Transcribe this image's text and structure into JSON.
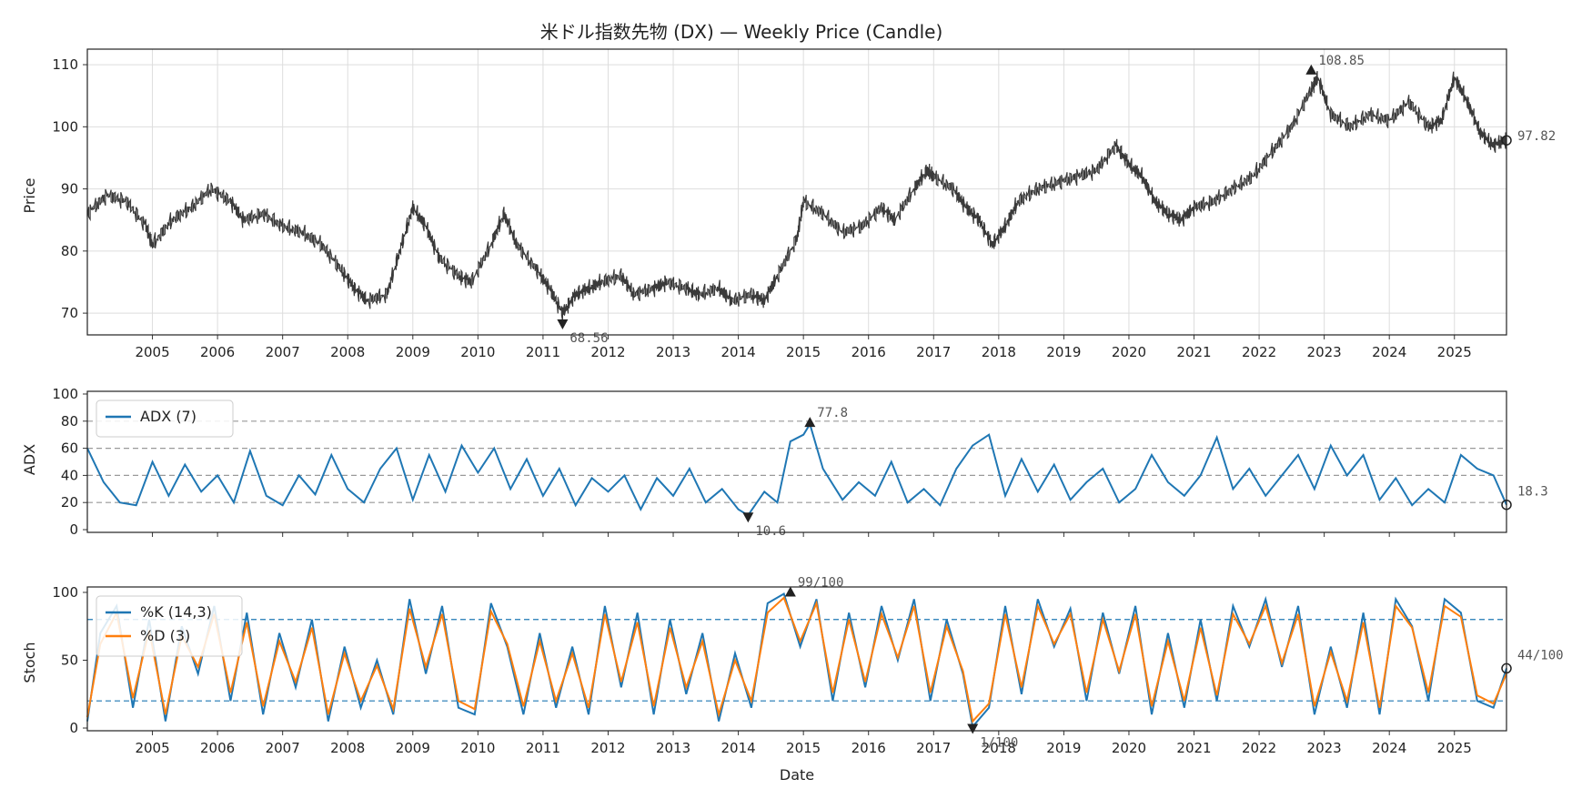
{
  "chart_data": [
    {
      "type": "candlestick",
      "title": "米ドル指数先物 (DX) — Weekly Price (Candle)",
      "ylabel": "Price",
      "xlabel": "",
      "xlim": [
        2004.0,
        2025.8
      ],
      "ylim": [
        66.5,
        112.5
      ],
      "yticks": [
        70,
        80,
        90,
        100,
        110
      ],
      "x_tick_labels": [
        "2005",
        "2006",
        "2007",
        "2008",
        "2009",
        "2010",
        "2011",
        "2012",
        "2013",
        "2014",
        "2015",
        "2016",
        "2017",
        "2018",
        "2019",
        "2020",
        "2021",
        "2022",
        "2023",
        "2024",
        "2025"
      ],
      "color": "#3a3a3a",
      "grid": true,
      "series_approx": {
        "x": [
          2004.0,
          2004.3,
          2004.6,
          2004.9,
          2005.0,
          2005.3,
          2005.6,
          2005.9,
          2006.2,
          2006.4,
          2006.7,
          2007.0,
          2007.3,
          2007.6,
          2007.9,
          2008.1,
          2008.3,
          2008.6,
          2008.8,
          2009.0,
          2009.2,
          2009.4,
          2009.7,
          2009.9,
          2010.2,
          2010.4,
          2010.6,
          2010.9,
          2011.1,
          2011.3,
          2011.5,
          2011.7,
          2011.9,
          2012.2,
          2012.4,
          2012.7,
          2012.9,
          2013.2,
          2013.4,
          2013.7,
          2013.9,
          2014.2,
          2014.4,
          2014.6,
          2014.9,
          2015.0,
          2015.3,
          2015.6,
          2015.9,
          2016.2,
          2016.4,
          2016.7,
          2016.9,
          2017.0,
          2017.3,
          2017.5,
          2017.7,
          2017.9,
          2018.1,
          2018.3,
          2018.6,
          2018.9,
          2019.2,
          2019.5,
          2019.8,
          2020.0,
          2020.2,
          2020.4,
          2020.6,
          2020.8,
          2021.0,
          2021.3,
          2021.6,
          2021.9,
          2022.2,
          2022.5,
          2022.8,
          2022.9,
          2023.1,
          2023.4,
          2023.7,
          2024.0,
          2024.3,
          2024.6,
          2024.8,
          2025.0,
          2025.2,
          2025.4,
          2025.6,
          2025.8
        ],
        "values": [
          86,
          89,
          88,
          84,
          81,
          85,
          87,
          90,
          88,
          85,
          86,
          84,
          83,
          81,
          77,
          74,
          72,
          73,
          80,
          87,
          84,
          79,
          76,
          75,
          81,
          86,
          81,
          77,
          74,
          70,
          73,
          74,
          75,
          76,
          73,
          74,
          75,
          74,
          73,
          74,
          72,
          73,
          72,
          76,
          82,
          88,
          86,
          83,
          84,
          87,
          85,
          90,
          93,
          92,
          90,
          87,
          85,
          81,
          84,
          88,
          90,
          91,
          92,
          93,
          97,
          94,
          92,
          88,
          86,
          85,
          87,
          88,
          90,
          92,
          96,
          100,
          106,
          108,
          102,
          100,
          102,
          101,
          104,
          100,
          101,
          108,
          104,
          99,
          97,
          98
        ]
      },
      "annotations": [
        {
          "label": "108.85",
          "x": 2022.8,
          "y": 108.85,
          "marker": "max"
        },
        {
          "label": "68.56",
          "x": 2011.3,
          "y": 68.56,
          "marker": "min"
        },
        {
          "label": "97.82",
          "x": 2025.8,
          "y": 97.82,
          "marker": "last"
        }
      ]
    },
    {
      "type": "line",
      "ylabel": "ADX",
      "xlim": [
        2004.0,
        2025.8
      ],
      "ylim": [
        -2,
        102
      ],
      "yticks": [
        0,
        20,
        40,
        60,
        80,
        100
      ],
      "hlines": [
        20,
        40,
        60,
        80
      ],
      "legend": [
        "ADX (7)"
      ],
      "series": [
        {
          "name": "ADX (7)",
          "color": "#1f77b4",
          "x": [
            2004.0,
            2004.25,
            2004.5,
            2004.75,
            2005.0,
            2005.25,
            2005.5,
            2005.75,
            2006.0,
            2006.25,
            2006.5,
            2006.75,
            2007.0,
            2007.25,
            2007.5,
            2007.75,
            2008.0,
            2008.25,
            2008.5,
            2008.75,
            2009.0,
            2009.25,
            2009.5,
            2009.75,
            2010.0,
            2010.25,
            2010.5,
            2010.75,
            2011.0,
            2011.25,
            2011.5,
            2011.75,
            2012.0,
            2012.25,
            2012.5,
            2012.75,
            2013.0,
            2013.25,
            2013.5,
            2013.75,
            2014.0,
            2014.15,
            2014.4,
            2014.6,
            2014.8,
            2015.0,
            2015.1,
            2015.3,
            2015.6,
            2015.85,
            2016.1,
            2016.35,
            2016.6,
            2016.85,
            2017.1,
            2017.35,
            2017.6,
            2017.85,
            2018.1,
            2018.35,
            2018.6,
            2018.85,
            2019.1,
            2019.35,
            2019.6,
            2019.85,
            2020.1,
            2020.35,
            2020.6,
            2020.85,
            2021.1,
            2021.35,
            2021.6,
            2021.85,
            2022.1,
            2022.35,
            2022.6,
            2022.85,
            2023.1,
            2023.35,
            2023.6,
            2023.85,
            2024.1,
            2024.35,
            2024.6,
            2024.85,
            2025.1,
            2025.35,
            2025.6,
            2025.8
          ],
          "values": [
            60,
            35,
            20,
            18,
            50,
            25,
            48,
            28,
            40,
            20,
            58,
            25,
            18,
            40,
            26,
            55,
            30,
            20,
            45,
            60,
            22,
            55,
            28,
            62,
            42,
            60,
            30,
            52,
            25,
            45,
            18,
            38,
            28,
            40,
            15,
            38,
            25,
            45,
            20,
            30,
            15,
            10.6,
            28,
            20,
            65,
            70,
            77.8,
            45,
            22,
            35,
            25,
            50,
            20,
            30,
            18,
            45,
            62,
            70,
            25,
            52,
            28,
            48,
            22,
            35,
            45,
            20,
            30,
            55,
            35,
            25,
            40,
            68,
            30,
            45,
            25,
            40,
            55,
            30,
            62,
            40,
            55,
            22,
            38,
            18,
            30,
            20,
            55,
            45,
            40,
            18.3
          ]
        }
      ],
      "annotations": [
        {
          "label": "77.8",
          "x": 2015.1,
          "y": 77.8,
          "marker": "max"
        },
        {
          "label": "10.6",
          "x": 2014.15,
          "y": 10.6,
          "marker": "min"
        },
        {
          "label": "18.3",
          "x": 2025.8,
          "y": 18.3,
          "marker": "last"
        }
      ]
    },
    {
      "type": "line",
      "ylabel": "Stoch",
      "xlabel": "Date",
      "xlim": [
        2004.0,
        2025.8
      ],
      "ylim": [
        -2,
        104
      ],
      "yticks": [
        0,
        50,
        100
      ],
      "hlines": [
        20,
        80
      ],
      "legend": [
        "%K (14,3)",
        "%D (3)"
      ],
      "x_tick_labels": [
        "2005",
        "2006",
        "2007",
        "2008",
        "2009",
        "2010",
        "2011",
        "2012",
        "2013",
        "2014",
        "2015",
        "2016",
        "2017",
        "2018",
        "2019",
        "2020",
        "2021",
        "2022",
        "2023",
        "2024",
        "2025"
      ],
      "series": [
        {
          "name": "%K (14,3)",
          "color": "#1f77b4",
          "x": [
            2004.0,
            2004.2,
            2004.45,
            2004.7,
            2004.95,
            2005.2,
            2005.45,
            2005.7,
            2005.95,
            2006.2,
            2006.45,
            2006.7,
            2006.95,
            2007.2,
            2007.45,
            2007.7,
            2007.95,
            2008.2,
            2008.45,
            2008.7,
            2008.95,
            2009.2,
            2009.45,
            2009.7,
            2009.95,
            2010.2,
            2010.45,
            2010.7,
            2010.95,
            2011.2,
            2011.45,
            2011.7,
            2011.95,
            2012.2,
            2012.45,
            2012.7,
            2012.95,
            2013.2,
            2013.45,
            2013.7,
            2013.95,
            2014.2,
            2014.45,
            2014.7,
            2014.95,
            2015.2,
            2015.45,
            2015.7,
            2015.95,
            2016.2,
            2016.45,
            2016.7,
            2016.95,
            2017.2,
            2017.45,
            2017.6,
            2017.85,
            2018.1,
            2018.35,
            2018.6,
            2018.85,
            2019.1,
            2019.35,
            2019.6,
            2019.85,
            2020.1,
            2020.35,
            2020.6,
            2020.85,
            2021.1,
            2021.35,
            2021.6,
            2021.85,
            2022.1,
            2022.35,
            2022.6,
            2022.85,
            2023.1,
            2023.35,
            2023.6,
            2023.85,
            2024.1,
            2024.35,
            2024.6,
            2024.85,
            2025.1,
            2025.35,
            2025.6,
            2025.8
          ],
          "values": [
            5,
            70,
            90,
            15,
            80,
            5,
            75,
            40,
            90,
            20,
            85,
            10,
            70,
            30,
            80,
            5,
            60,
            15,
            50,
            10,
            95,
            40,
            90,
            15,
            10,
            92,
            60,
            10,
            70,
            15,
            60,
            10,
            90,
            30,
            85,
            10,
            80,
            25,
            70,
            5,
            55,
            15,
            92,
            99,
            60,
            95,
            20,
            85,
            30,
            90,
            50,
            95,
            20,
            80,
            40,
            1,
            15,
            90,
            25,
            95,
            60,
            88,
            20,
            85,
            40,
            90,
            10,
            70,
            15,
            80,
            20,
            90,
            60,
            95,
            45,
            90,
            10,
            60,
            15,
            85,
            10,
            95,
            75,
            20,
            95,
            85,
            20,
            15,
            44
          ]
        },
        {
          "name": "%D (3)",
          "color": "#ff7f0e",
          "x": [
            2004.0,
            2004.2,
            2004.45,
            2004.7,
            2004.95,
            2005.2,
            2005.45,
            2005.7,
            2005.95,
            2006.2,
            2006.45,
            2006.7,
            2006.95,
            2007.2,
            2007.45,
            2007.7,
            2007.95,
            2008.2,
            2008.45,
            2008.7,
            2008.95,
            2009.2,
            2009.45,
            2009.7,
            2009.95,
            2010.2,
            2010.45,
            2010.7,
            2010.95,
            2011.2,
            2011.45,
            2011.7,
            2011.95,
            2012.2,
            2012.45,
            2012.7,
            2012.95,
            2013.2,
            2013.45,
            2013.7,
            2013.95,
            2014.2,
            2014.45,
            2014.7,
            2014.95,
            2015.2,
            2015.45,
            2015.7,
            2015.95,
            2016.2,
            2016.45,
            2016.7,
            2016.95,
            2017.2,
            2017.45,
            2017.6,
            2017.85,
            2018.1,
            2018.35,
            2018.6,
            2018.85,
            2019.1,
            2019.35,
            2019.6,
            2019.85,
            2020.1,
            2020.35,
            2020.6,
            2020.85,
            2021.1,
            2021.35,
            2021.6,
            2021.85,
            2022.1,
            2022.35,
            2022.6,
            2022.85,
            2023.1,
            2023.35,
            2023.6,
            2023.85,
            2024.1,
            2024.35,
            2024.6,
            2024.85,
            2025.1,
            2025.35,
            2025.6,
            2025.8
          ],
          "values": [
            8,
            62,
            85,
            22,
            72,
            10,
            68,
            45,
            84,
            26,
            78,
            16,
            64,
            34,
            74,
            10,
            55,
            20,
            46,
            14,
            88,
            45,
            84,
            20,
            14,
            86,
            62,
            16,
            64,
            20,
            55,
            15,
            84,
            34,
            78,
            16,
            74,
            30,
            64,
            10,
            50,
            20,
            85,
            96,
            64,
            92,
            26,
            80,
            34,
            84,
            52,
            90,
            26,
            75,
            42,
            5,
            18,
            84,
            30,
            90,
            62,
            84,
            26,
            80,
            42,
            84,
            16,
            64,
            20,
            74,
            24,
            84,
            62,
            90,
            48,
            84,
            16,
            56,
            20,
            78,
            15,
            90,
            74,
            26,
            90,
            82,
            24,
            18,
            40
          ]
        }
      ],
      "annotations": [
        {
          "label": "99/100",
          "x": 2014.8,
          "y": 99,
          "marker": "max"
        },
        {
          "label": "1/100",
          "x": 2017.6,
          "y": 1,
          "marker": "min"
        },
        {
          "label": "44/100",
          "x": 2025.8,
          "y": 44,
          "marker": "last"
        }
      ]
    }
  ]
}
